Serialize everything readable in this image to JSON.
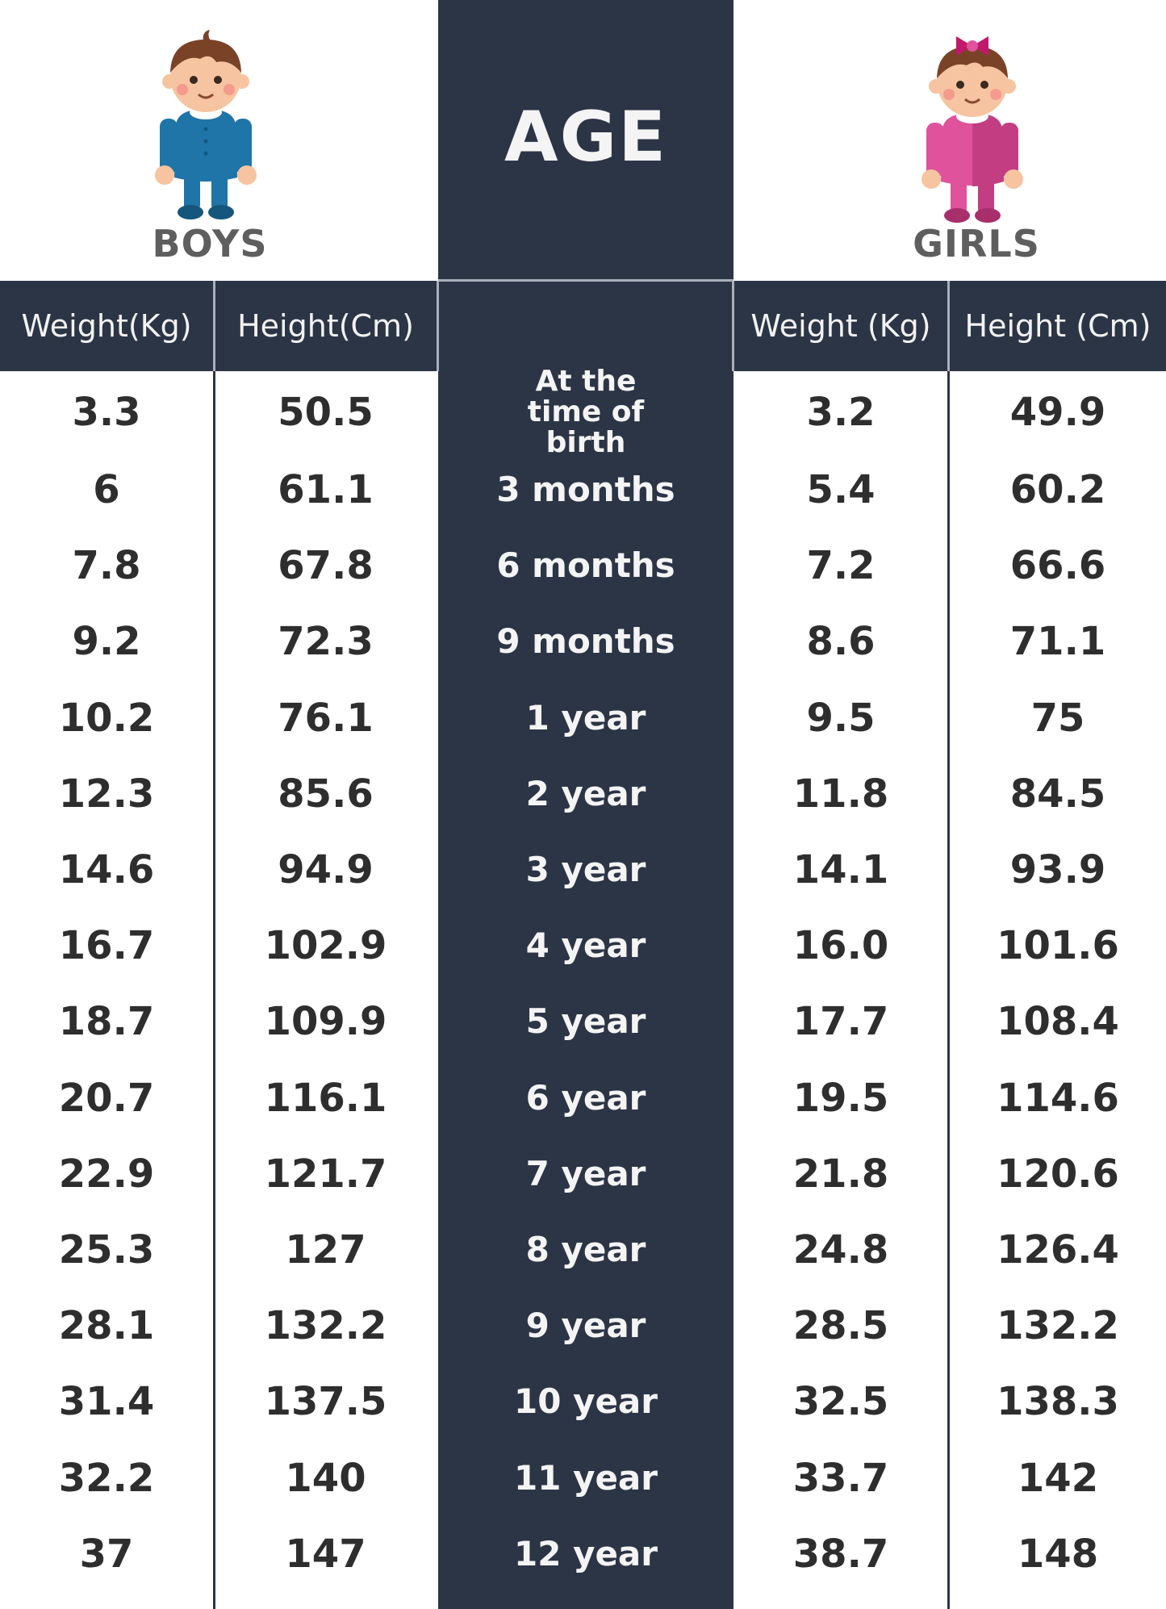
{
  "chart_data": {
    "type": "table",
    "title": "AGE",
    "groups": [
      "BOYS",
      "GIRLS"
    ],
    "headers": [
      "Weight(Kg)",
      "Height(Cm)",
      "",
      "Weight  (Kg)",
      "Height  (Cm)"
    ],
    "rows": [
      {
        "age": "At the time of birth",
        "boys_weight": "3.3",
        "boys_height": "50.5",
        "girls_weight": "3.2",
        "girls_height": "49.9"
      },
      {
        "age": "3 months",
        "boys_weight": "6",
        "boys_height": "61.1",
        "girls_weight": "5.4",
        "girls_height": "60.2"
      },
      {
        "age": "6 months",
        "boys_weight": "7.8",
        "boys_height": "67.8",
        "girls_weight": "7.2",
        "girls_height": "66.6"
      },
      {
        "age": "9 months",
        "boys_weight": "9.2",
        "boys_height": "72.3",
        "girls_weight": "8.6",
        "girls_height": "71.1"
      },
      {
        "age": "1 year",
        "boys_weight": "10.2",
        "boys_height": "76.1",
        "girls_weight": "9.5",
        "girls_height": "75"
      },
      {
        "age": "2 year",
        "boys_weight": "12.3",
        "boys_height": "85.6",
        "girls_weight": "11.8",
        "girls_height": "84.5"
      },
      {
        "age": "3 year",
        "boys_weight": "14.6",
        "boys_height": "94.9",
        "girls_weight": "14.1",
        "girls_height": "93.9"
      },
      {
        "age": "4 year",
        "boys_weight": "16.7",
        "boys_height": "102.9",
        "girls_weight": "16.0",
        "girls_height": "101.6"
      },
      {
        "age": "5 year",
        "boys_weight": "18.7",
        "boys_height": "109.9",
        "girls_weight": "17.7",
        "girls_height": "108.4"
      },
      {
        "age": "6 year",
        "boys_weight": "20.7",
        "boys_height": "116.1",
        "girls_weight": "19.5",
        "girls_height": "114.6"
      },
      {
        "age": "7 year",
        "boys_weight": "22.9",
        "boys_height": "121.7",
        "girls_weight": "21.8",
        "girls_height": "120.6"
      },
      {
        "age": "8 year",
        "boys_weight": "25.3",
        "boys_height": "127",
        "girls_weight": "24.8",
        "girls_height": "126.4"
      },
      {
        "age": "9 year",
        "boys_weight": "28.1",
        "boys_height": "132.2",
        "girls_weight": "28.5",
        "girls_height": "132.2"
      },
      {
        "age": "10 year",
        "boys_weight": "31.4",
        "boys_height": "137.5",
        "girls_weight": "32.5",
        "girls_height": "138.3"
      },
      {
        "age": "11 year",
        "boys_weight": "32.2",
        "boys_height": "140",
        "girls_weight": "33.7",
        "girls_height": "142"
      },
      {
        "age": "12 year",
        "boys_weight": "37",
        "boys_height": "147",
        "girls_weight": "38.7",
        "girls_height": "148"
      }
    ]
  },
  "icons": {
    "boy": "baby-boy-icon",
    "girl": "baby-girl-icon"
  },
  "colors": {
    "dark": "#2c3546",
    "boy_suit": "#1f74a8",
    "girl_suit": "#e0529c",
    "hair": "#7a4328",
    "text": "#2e2e2e"
  }
}
